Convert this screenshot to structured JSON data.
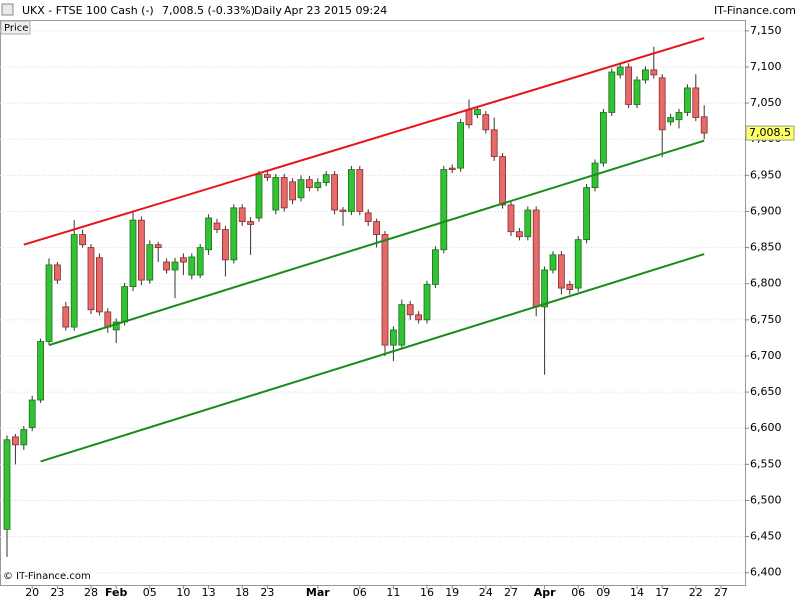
{
  "chart_data": {
    "type": "candlestick",
    "title": "UKX - FTSE 100 Cash (-)",
    "quote": "7,008.5 (-0.33%)",
    "period": "Daily",
    "timestamp": "Apr 23 2015 09:24",
    "source": "IT-Finance.com",
    "panel_label": "Price",
    "copyright": "© IT-Finance.com",
    "up_color": "#33c233",
    "down_color": "#e56a6a",
    "grid": true,
    "ylim": [
      6383,
      7165
    ],
    "yticks": [
      {
        "value": 6400,
        "label": "6,400"
      },
      {
        "value": 6450,
        "label": "6,450"
      },
      {
        "value": 6500,
        "label": "6,500"
      },
      {
        "value": 6550,
        "label": "6,550"
      },
      {
        "value": 6600,
        "label": "6,600"
      },
      {
        "value": 6650,
        "label": "6,650"
      },
      {
        "value": 6700,
        "label": "6,700"
      },
      {
        "value": 6750,
        "label": "6,750"
      },
      {
        "value": 6800,
        "label": "6,800"
      },
      {
        "value": 6850,
        "label": "6,850"
      },
      {
        "value": 6900,
        "label": "6,900"
      },
      {
        "value": 6950,
        "label": "6,950"
      },
      {
        "value": 7000,
        "label": "7,000"
      },
      {
        "value": 7050,
        "label": "7,050"
      },
      {
        "value": 7100,
        "label": "7,100"
      },
      {
        "value": 7150,
        "label": "7,150"
      }
    ],
    "last_price": {
      "value": 7008.5,
      "label": "7,008.5"
    },
    "categories": [
      null,
      null,
      null,
      "20",
      null,
      null,
      "23",
      null,
      null,
      null,
      "28",
      null,
      null,
      "Feb",
      null,
      null,
      null,
      "05",
      null,
      null,
      null,
      "10",
      null,
      null,
      "13",
      null,
      null,
      null,
      "18",
      null,
      null,
      "23",
      null,
      null,
      null,
      null,
      null,
      "Mar",
      null,
      null,
      null,
      null,
      "06",
      null,
      null,
      null,
      "11",
      null,
      null,
      null,
      "16",
      null,
      null,
      "19",
      null,
      null,
      null,
      "24",
      null,
      null,
      "27",
      null,
      null,
      null,
      "Apr",
      null,
      null,
      null,
      "06",
      null,
      null,
      "09",
      null,
      null,
      null,
      "14",
      null,
      null,
      "17",
      null,
      null,
      null,
      "22",
      null,
      null,
      "27"
    ],
    "open": [
      6460,
      6588,
      6577,
      6601,
      6639,
      6720,
      6826,
      6768,
      6740,
      6868,
      6850,
      6836,
      6761,
      6736,
      6747,
      6796,
      6888,
      6805,
      6854,
      6830,
      6819,
      6836,
      6812,
      6812,
      6847,
      6884,
      6875,
      6833,
      6905,
      6886,
      6891,
      6951,
      6902,
      6947,
      6941,
      6919,
      6944,
      6933,
      6940,
      6951,
      6902,
      6900,
      6958,
      6898,
      6886,
      6868,
      6715,
      6715,
      6771,
      6757,
      6750,
      6799,
      6847,
      6960,
      6960,
      7041,
      7034,
      7034,
      7013,
      6976,
      6909,
      6872,
      6865,
      6902,
      6768,
      6819,
      6840,
      6799,
      6794,
      6861,
      6933,
      6967,
      7037,
      7089,
      7100,
      7048,
      7082,
      7096,
      7085,
      7024,
      7027,
      7037,
      7071,
      7031,
      null,
      null
    ],
    "high": [
      6590,
      6592,
      6603,
      6645,
      6724,
      6835,
      6830,
      6775,
      6888,
      6875,
      6855,
      6842,
      6766,
      6752,
      6801,
      6900,
      6893,
      6860,
      6858,
      6835,
      6836,
      6842,
      6842,
      6855,
      6896,
      6890,
      6880,
      6910,
      6910,
      6892,
      6956,
      6958,
      6952,
      6952,
      6946,
      6950,
      6949,
      6946,
      6956,
      6956,
      6906,
      6963,
      6963,
      6903,
      6890,
      6873,
      6741,
      6778,
      6776,
      6762,
      6804,
      6852,
      6963,
      6965,
      7028,
      7055,
      7046,
      7039,
      7030,
      6981,
      6914,
      6877,
      6907,
      6907,
      6824,
      6845,
      6845,
      6804,
      6866,
      6938,
      6972,
      7042,
      7098,
      7106,
      7105,
      7087,
      7101,
      7128,
      7090,
      7035,
      7042,
      7076,
      7090,
      7047,
      null,
      null
    ],
    "low": [
      6422,
      6550,
      6570,
      6596,
      6635,
      6715,
      6800,
      6735,
      6735,
      6850,
      6758,
      6756,
      6732,
      6718,
      6742,
      6790,
      6798,
      6800,
      6830,
      6814,
      6780,
      6812,
      6806,
      6808,
      6840,
      6870,
      6810,
      6828,
      6880,
      6840,
      6886,
      6942,
      6896,
      6900,
      6910,
      6914,
      6928,
      6928,
      6935,
      6896,
      6880,
      6895,
      6895,
      6880,
      6850,
      6700,
      6693,
      6710,
      6750,
      6745,
      6745,
      6794,
      6842,
      6953,
      6955,
      7015,
      7029,
      7008,
      6970,
      6904,
      6866,
      6860,
      6860,
      6755,
      6674,
      6814,
      6785,
      6785,
      6789,
      6856,
      6928,
      6962,
      7032,
      7084,
      7043,
      7043,
      7077,
      7084,
      6975,
      7019,
      7015,
      7032,
      7025,
      7000,
      null,
      null
    ],
    "close": [
      6584,
      6577,
      6598,
      6639,
      6720,
      6826,
      6805,
      6740,
      6868,
      6854,
      6764,
      6761,
      6740,
      6747,
      6796,
      6888,
      6805,
      6854,
      6850,
      6819,
      6830,
      6830,
      6837,
      6850,
      6891,
      6875,
      6833,
      6905,
      6886,
      6882,
      6951,
      6947,
      6947,
      6905,
      6916,
      6944,
      6933,
      6940,
      6951,
      6902,
      6900,
      6958,
      6900,
      6886,
      6868,
      6715,
      6736,
      6771,
      6757,
      6750,
      6799,
      6847,
      6958,
      6958,
      7023,
      7020,
      7041,
      7013,
      6976,
      6909,
      6872,
      6865,
      6902,
      6768,
      6819,
      6840,
      6794,
      6792,
      6861,
      6933,
      6967,
      7037,
      7093,
      7100,
      7048,
      7082,
      7096,
      7089,
      7013,
      7030,
      7037,
      7071,
      7030,
      7008.5,
      null,
      null
    ],
    "trendlines": [
      {
        "color": "#e8141b",
        "start": [
          2,
          6854
        ],
        "end": [
          83,
          7140
        ]
      },
      {
        "color": "#1a8c1a",
        "start": [
          5,
          6715
        ],
        "end": [
          83,
          6998
        ]
      },
      {
        "color": "#1a8c1a",
        "start": [
          4,
          6554
        ],
        "end": [
          83,
          6841
        ]
      }
    ]
  }
}
